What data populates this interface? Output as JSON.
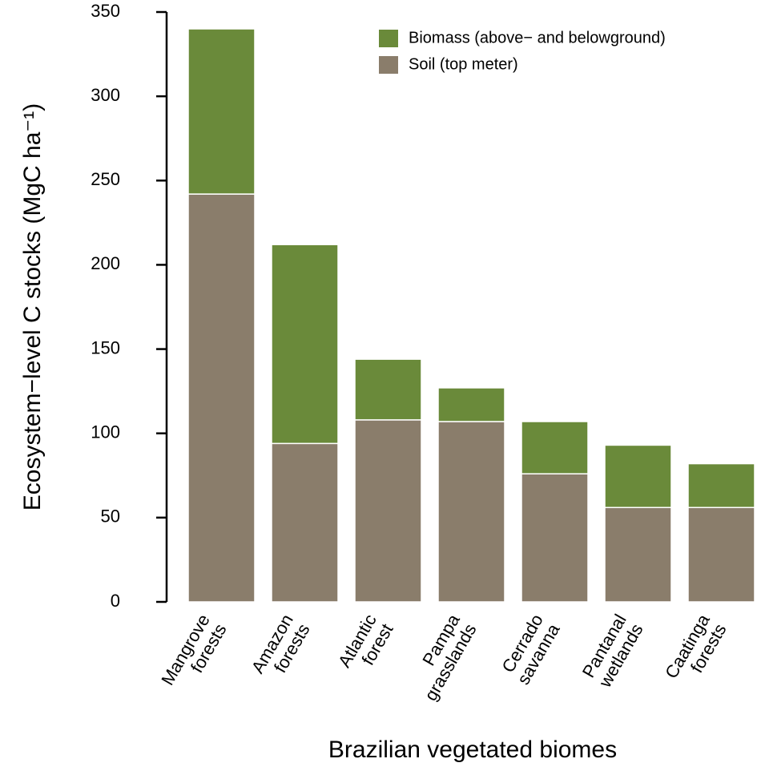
{
  "chart_data": {
    "type": "stacked-bar",
    "x_label": "Brazilian vegetated biomes",
    "y_label": "Ecosystem−level C stocks (MgC ha⁻¹)",
    "categories": [
      [
        "Mangrove",
        "forests"
      ],
      [
        "Amazon",
        "forests"
      ],
      [
        "Atlantic",
        "forest"
      ],
      [
        "Pampa",
        "grasslands"
      ],
      [
        "Cerrado",
        "savanna"
      ],
      [
        "Pantanal",
        "wetlands"
      ],
      [
        "Caatinga",
        "forests"
      ]
    ],
    "series": [
      {
        "name": "Soil (top meter)",
        "color": "#8a7d6b",
        "values": [
          242,
          94,
          108,
          107,
          76,
          56,
          56
        ]
      },
      {
        "name": "Biomass (above− and belowground)",
        "color": "#6a8a3a",
        "values": [
          98,
          118,
          36,
          20,
          31,
          37,
          26
        ]
      }
    ],
    "ylim": [
      0,
      350
    ],
    "yticks": [
      0,
      50,
      100,
      150,
      200,
      250,
      300,
      350
    ],
    "legend": "top-right"
  }
}
